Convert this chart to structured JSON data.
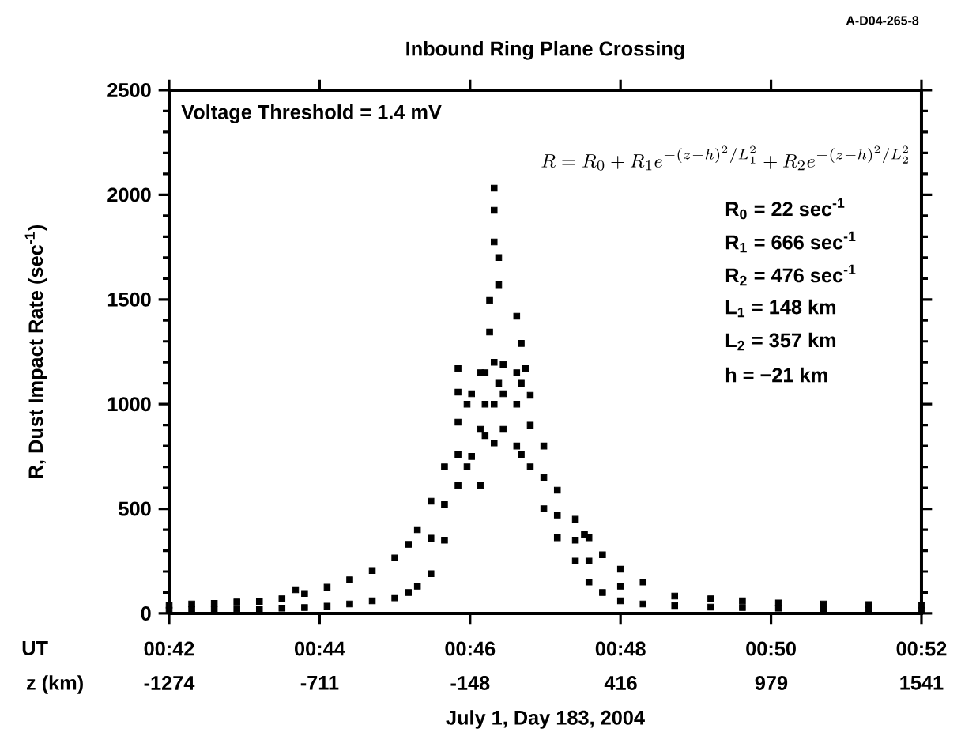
{
  "chart_data": {
    "type": "scatter",
    "title": "Inbound Ring Plane Crossing",
    "xlabel": "July 1, Day 183, 2004",
    "ylabel": "R, Dust Impact Rate (sec$^{-1}$)",
    "x2label": "z (km)",
    "annotations": [
      "A-D04-265-8",
      "Voltage Threshold = 1.4 mV",
      "R = R_0 + R_1 e^{-(z-h)^2/L_1^2} + R_2 e^{-(z-h)^2/L_2^2}",
      "R$_{0}$ =   22 sec$^{-1}$",
      "R$_{1}$ = 666 sec$^{-1}$",
      "R$_{2}$ = 476 sec$^{-1}$",
      "L$_{1}$ = 148 km",
      "L$_{2}$ = 357 km",
      "h  = −21 km",
      "UT"
    ],
    "xlim": [
      0.7,
      0.866667
    ],
    "ylim": [
      0,
      2500
    ],
    "xticks": [
      {
        "value": 0.7,
        "label": "00:42"
      },
      {
        "value": 0.733333,
        "label": "00:44"
      },
      {
        "value": 0.766667,
        "label": "00:46"
      },
      {
        "value": 0.8,
        "label": "00:48"
      },
      {
        "value": 0.833333,
        "label": "00:50"
      },
      {
        "value": 0.866667,
        "label": "00:52"
      }
    ],
    "yticks": [
      0,
      500,
      1000,
      1500,
      2000,
      2500
    ],
    "x2lim": [
      -1274,
      1541
    ],
    "x2ticks": [
      -1274,
      -711,
      -148,
      416,
      979,
      1541
    ],
    "marker": "square",
    "series": [
      {
        "color": "#000000",
        "x": [
          0.7,
          0.7,
          0.705,
          0.705,
          0.71,
          0.71,
          0.715,
          0.715,
          0.72,
          0.72,
          0.725,
          0.725,
          0.728,
          0.73,
          0.73,
          0.735,
          0.735,
          0.74,
          0.74,
          0.745,
          0.745,
          0.75,
          0.75,
          0.753,
          0.753,
          0.755,
          0.755,
          0.758,
          0.758,
          0.758,
          0.761,
          0.761,
          0.761,
          0.764,
          0.764,
          0.764,
          0.764,
          0.764,
          0.766,
          0.766,
          0.767,
          0.767,
          0.769,
          0.769,
          0.769,
          0.77,
          0.77,
          0.77,
          0.771,
          0.771,
          0.772,
          0.772,
          0.772,
          0.772,
          0.772,
          0.772,
          0.773,
          0.773,
          0.773,
          0.774,
          0.774,
          0.774,
          0.777,
          0.777,
          0.777,
          0.777,
          0.778,
          0.778,
          0.778,
          0.779,
          0.78,
          0.78,
          0.78,
          0.783,
          0.783,
          0.783,
          0.786,
          0.786,
          0.786,
          0.79,
          0.79,
          0.79,
          0.792,
          0.793,
          0.793,
          0.793,
          0.796,
          0.796,
          0.8,
          0.8,
          0.8,
          0.805,
          0.805,
          0.812,
          0.812,
          0.82,
          0.82,
          0.827,
          0.827,
          0.835,
          0.835,
          0.845,
          0.845,
          0.855,
          0.855,
          0.866667,
          0.866667
        ],
        "values": [
          40,
          15,
          45,
          20,
          48,
          18,
          55,
          22,
          58,
          20,
          70,
          25,
          113,
          95,
          28,
          125,
          35,
          160,
          45,
          205,
          60,
          265,
          75,
          330,
          100,
          400,
          130,
          536,
          190,
          360,
          700,
          350,
          520,
          914,
          611,
          760,
          1170,
          1057,
          1000,
          700,
          1050,
          750,
          611,
          1150,
          880,
          1150,
          850,
          1000,
          1344,
          1495,
          2032,
          1926,
          1775,
          1200,
          815,
          1000,
          1700,
          1570,
          1100,
          1190,
          880,
          1050,
          1420,
          1150,
          800,
          1000,
          1290,
          1100,
          760,
          1170,
          1042,
          700,
          900,
          800,
          500,
          650,
          589,
          362,
          470,
          450,
          250,
          350,
          377,
          362,
          150,
          250,
          280,
          100,
          211,
          60,
          130,
          150,
          45,
          83,
          38,
          70,
          30,
          60,
          28,
          50,
          25,
          45,
          20,
          42,
          18,
          40,
          15
        ]
      }
    ]
  }
}
